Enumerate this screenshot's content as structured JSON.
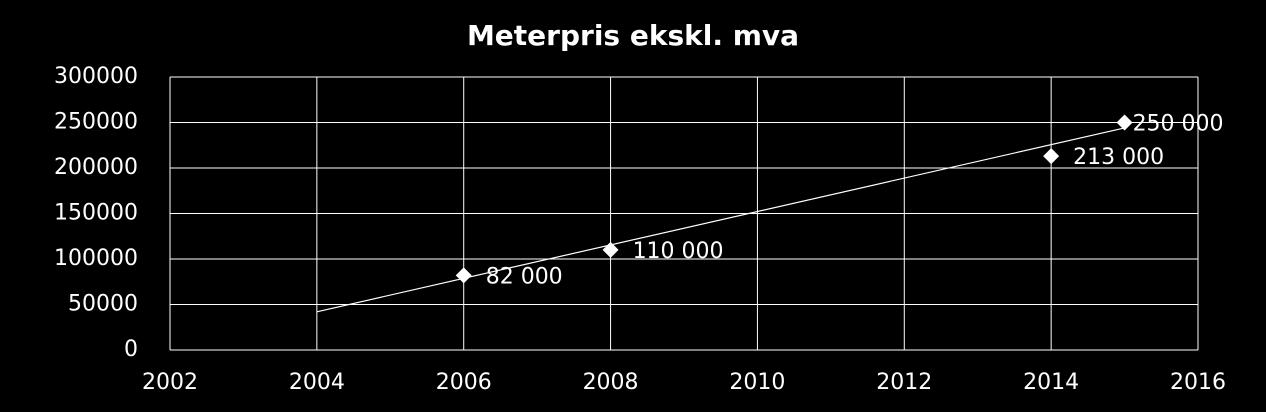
{
  "chart_data": {
    "type": "scatter",
    "title": "Meterpris ekskl. mva",
    "series": [
      {
        "color": "#ffffff",
        "x": [
          2006,
          2008,
          2014,
          2015
        ],
        "values": [
          82000,
          110000,
          213000,
          250000
        ],
        "value_labels": [
          "82 000",
          "110 000",
          "213 000",
          "250 000"
        ]
      }
    ],
    "trendline": {
      "color": "#ffffff",
      "x": [
        2004,
        2015
      ],
      "values": [
        42000,
        244000
      ]
    },
    "xlim": [
      2002,
      2016
    ],
    "xticks": [
      2002,
      2004,
      2006,
      2008,
      2010,
      2012,
      2014,
      2016
    ],
    "ylim": [
      0,
      300000
    ],
    "yticks": [
      0,
      50000,
      100000,
      150000,
      200000,
      250000,
      300000
    ],
    "grid": true
  }
}
